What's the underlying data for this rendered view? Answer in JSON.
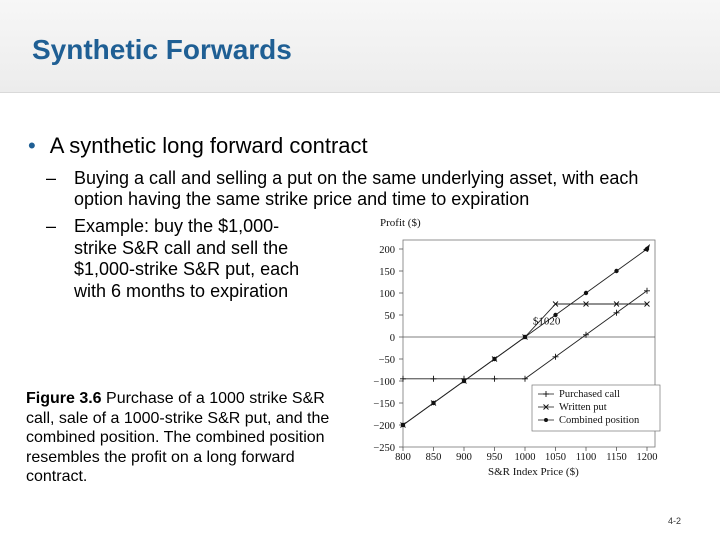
{
  "slide": {
    "title": "Synthetic Forwards",
    "bullet": "A synthetic long forward contract",
    "sub1": "Buying a call and selling a put on the same underlying asset, with each option having the same strike price and time to expiration",
    "sub2": "Example: buy the $1,000-strike S&R call and sell the $1,000-strike S&R put, each with 6 months to expiration",
    "caption_label": "Figure 3.6",
    "caption_text": "Purchase of a 1000 strike S&R call, sale of a 1000-strike S&R put, and the combined position. The combined position resembles the profit on a long forward contract.",
    "slide_number": "4-2"
  },
  "chart_data": {
    "type": "line",
    "ylabel": "Profit ($)",
    "xlabel": "S&R Index Price ($)",
    "xlim": [
      800,
      1200
    ],
    "ylim": [
      -250,
      200
    ],
    "x_ticks": [
      800,
      850,
      900,
      950,
      1000,
      1050,
      1100,
      1150,
      1200
    ],
    "y_ticks": [
      200,
      150,
      100,
      50,
      0,
      -50,
      -100,
      -150,
      -200,
      -250
    ],
    "x_tick_labels": [
      "800",
      "850",
      "900",
      "950",
      "1000",
      "1050",
      "1100",
      "1150",
      "1200"
    ],
    "y_tick_labels": [
      "200",
      "150",
      "100",
      "50",
      "0",
      "−50",
      "−100",
      "−150",
      "−200",
      "−250"
    ],
    "annotation": "$1020",
    "legend_position": "bottom-right",
    "series": [
      {
        "name": "Purchased call",
        "marker": "+",
        "x": [
          800,
          850,
          900,
          950,
          1000,
          1050,
          1100,
          1150,
          1200
        ],
        "values": [
          -95,
          -95,
          -95,
          -95,
          -95,
          -45,
          5,
          55,
          105
        ]
      },
      {
        "name": "Written put",
        "marker": "x",
        "x": [
          800,
          850,
          900,
          950,
          1000,
          1050,
          1100,
          1150,
          1200
        ],
        "values": [
          -200,
          -150,
          -100,
          -50,
          0,
          75,
          75,
          75,
          75
        ]
      },
      {
        "name": "Combined position",
        "marker": "dot",
        "x": [
          800,
          850,
          900,
          950,
          1000,
          1050,
          1100,
          1150,
          1200
        ],
        "values": [
          -200,
          -150,
          -100,
          -50,
          0,
          50,
          100,
          150,
          200
        ]
      }
    ]
  }
}
